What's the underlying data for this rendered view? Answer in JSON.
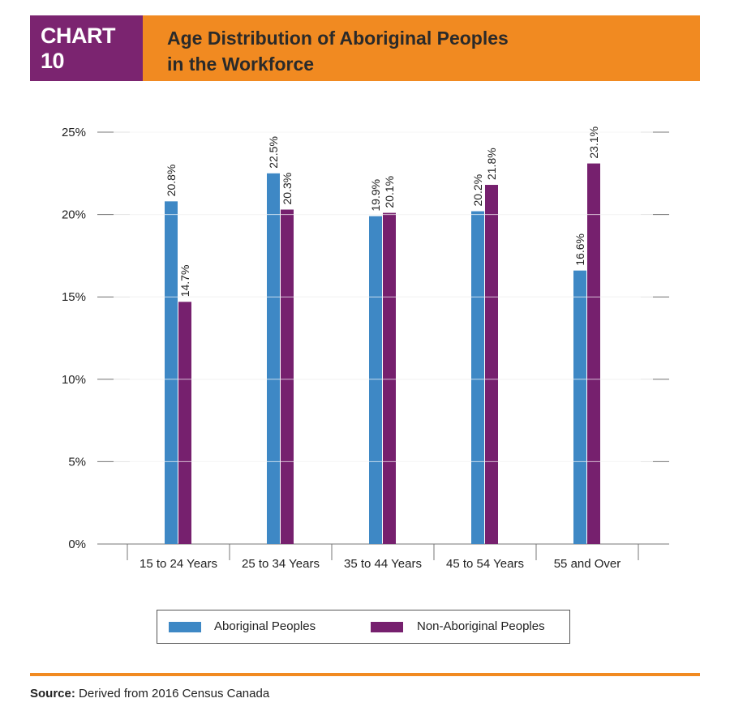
{
  "header": {
    "tag": "CHART 10",
    "title_line1": "Age Distribution of Aboriginal Peoples",
    "title_line2": "in the Workforce"
  },
  "colors": {
    "purple": "#7b2470",
    "orange": "#f18a21",
    "aboriginal": "#3e88c5",
    "non_aboriginal": "#76206e"
  },
  "chart_data": {
    "type": "bar",
    "title": "Age Distribution of Aboriginal Peoples in the Workforce",
    "xlabel": "",
    "ylabel": "",
    "categories": [
      "15 to 24 Years",
      "25 to 34 Years",
      "35 to 44 Years",
      "45 to 54 Years",
      "55 and Over"
    ],
    "series": [
      {
        "name": "Aboriginal Peoples",
        "values": [
          20.8,
          22.5,
          19.9,
          20.2,
          16.6
        ],
        "labels": [
          "20.8%",
          "22.5%",
          "19.9%",
          "20.2%",
          "16.6%"
        ]
      },
      {
        "name": "Non-Aboriginal Peoples",
        "values": [
          14.7,
          20.3,
          20.1,
          21.8,
          23.1
        ],
        "labels": [
          "14.7%",
          "20.3%",
          "20.1%",
          "21.8%",
          "23.1%"
        ]
      }
    ],
    "ylim": [
      0,
      25
    ],
    "yticks": [
      0,
      5,
      10,
      15,
      20,
      25
    ],
    "ytick_labels": [
      "0%",
      "5%",
      "10%",
      "15%",
      "20%",
      "25%"
    ],
    "grid": true,
    "legend_position": "bottom"
  },
  "legend": {
    "aboriginal": "Aboriginal Peoples",
    "non_aboriginal": "Non-Aboriginal Peoples"
  },
  "source": {
    "label": "Source:",
    "text": "Derived from 2016 Census Canada"
  }
}
